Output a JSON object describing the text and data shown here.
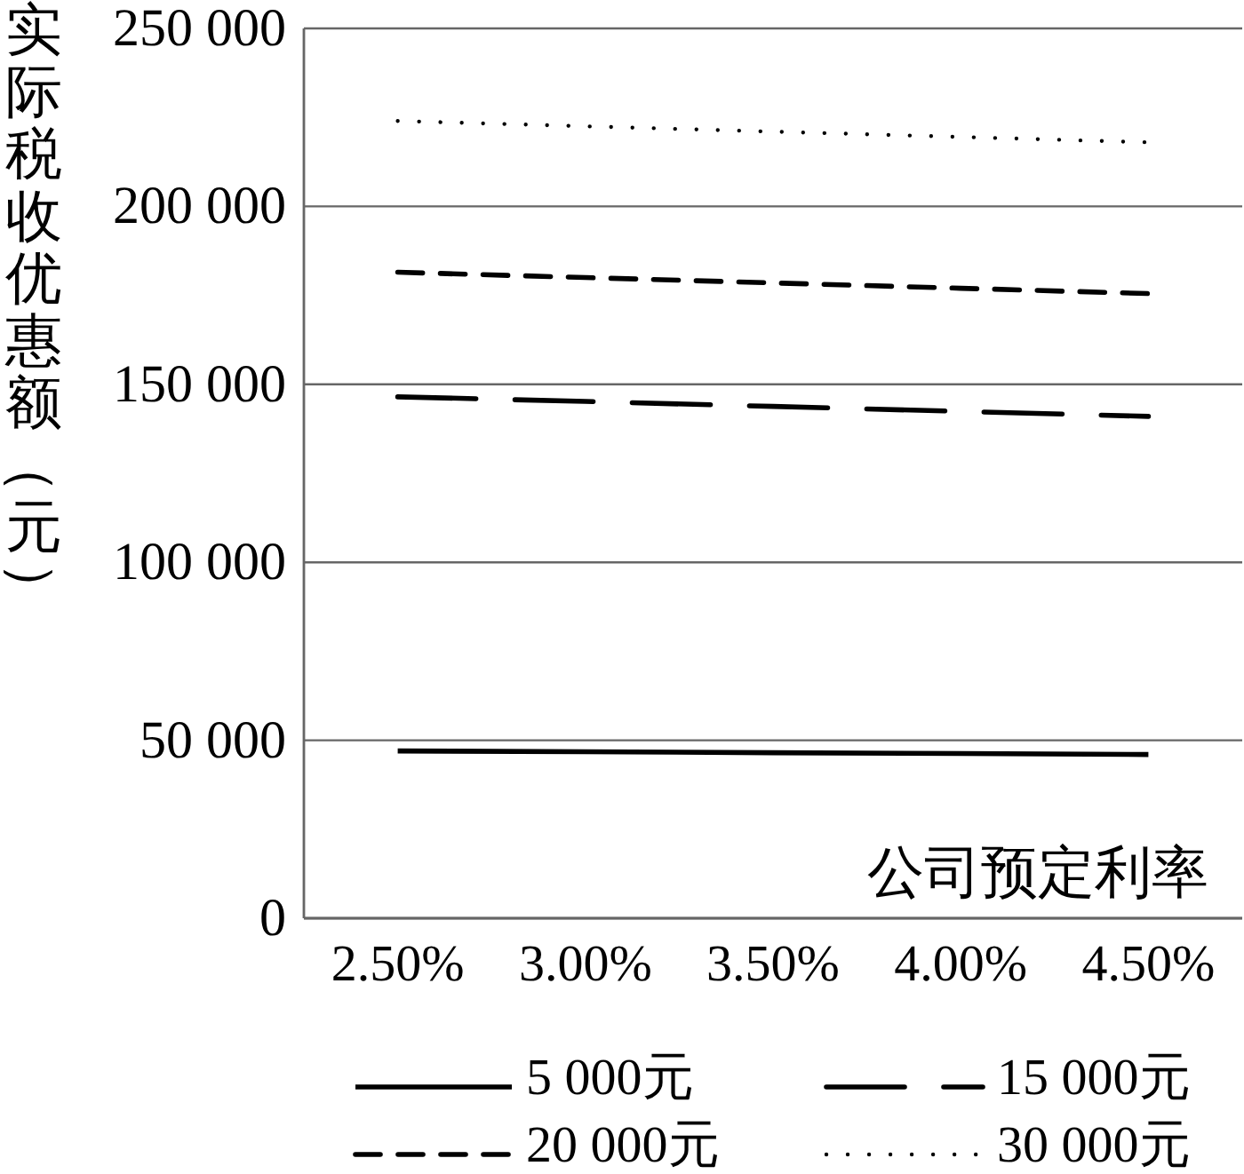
{
  "chart_data": {
    "type": "line",
    "xlabel": "公司预定利率",
    "ylabel": "实际税收优惠额（元）",
    "categories": [
      "2.50%",
      "3.00%",
      "3.50%",
      "4.00%",
      "4.50%"
    ],
    "series": [
      {
        "name": "5 000元",
        "color": "#000000",
        "line_style": "solid",
        "values": [
          47000,
          46800,
          46500,
          46300,
          46000
        ]
      },
      {
        "name": "15 000元",
        "color": "#000000",
        "line_style": "dashed",
        "values": [
          146500,
          145200,
          143800,
          142400,
          141000
        ]
      },
      {
        "name": "20 000元",
        "color": "#000000",
        "line_style": "dashed",
        "values": [
          181500,
          180000,
          178500,
          177000,
          175500
        ]
      },
      {
        "name": "30 000元",
        "color": "#000000",
        "line_style": "dotted",
        "values": [
          224000,
          222500,
          221000,
          219500,
          218000
        ]
      }
    ],
    "ylim": [
      0,
      250000
    ],
    "yticks": [
      0,
      {
        "value": 50000,
        "label": "50 000"
      },
      {
        "value": 100000,
        "label": "100 000"
      },
      {
        "value": 150000,
        "label": "150 000"
      },
      {
        "value": 200000,
        "label": "200 000"
      },
      {
        "value": 250000,
        "label": "250 000"
      }
    ],
    "grid": "y",
    "legend": "bottom"
  }
}
